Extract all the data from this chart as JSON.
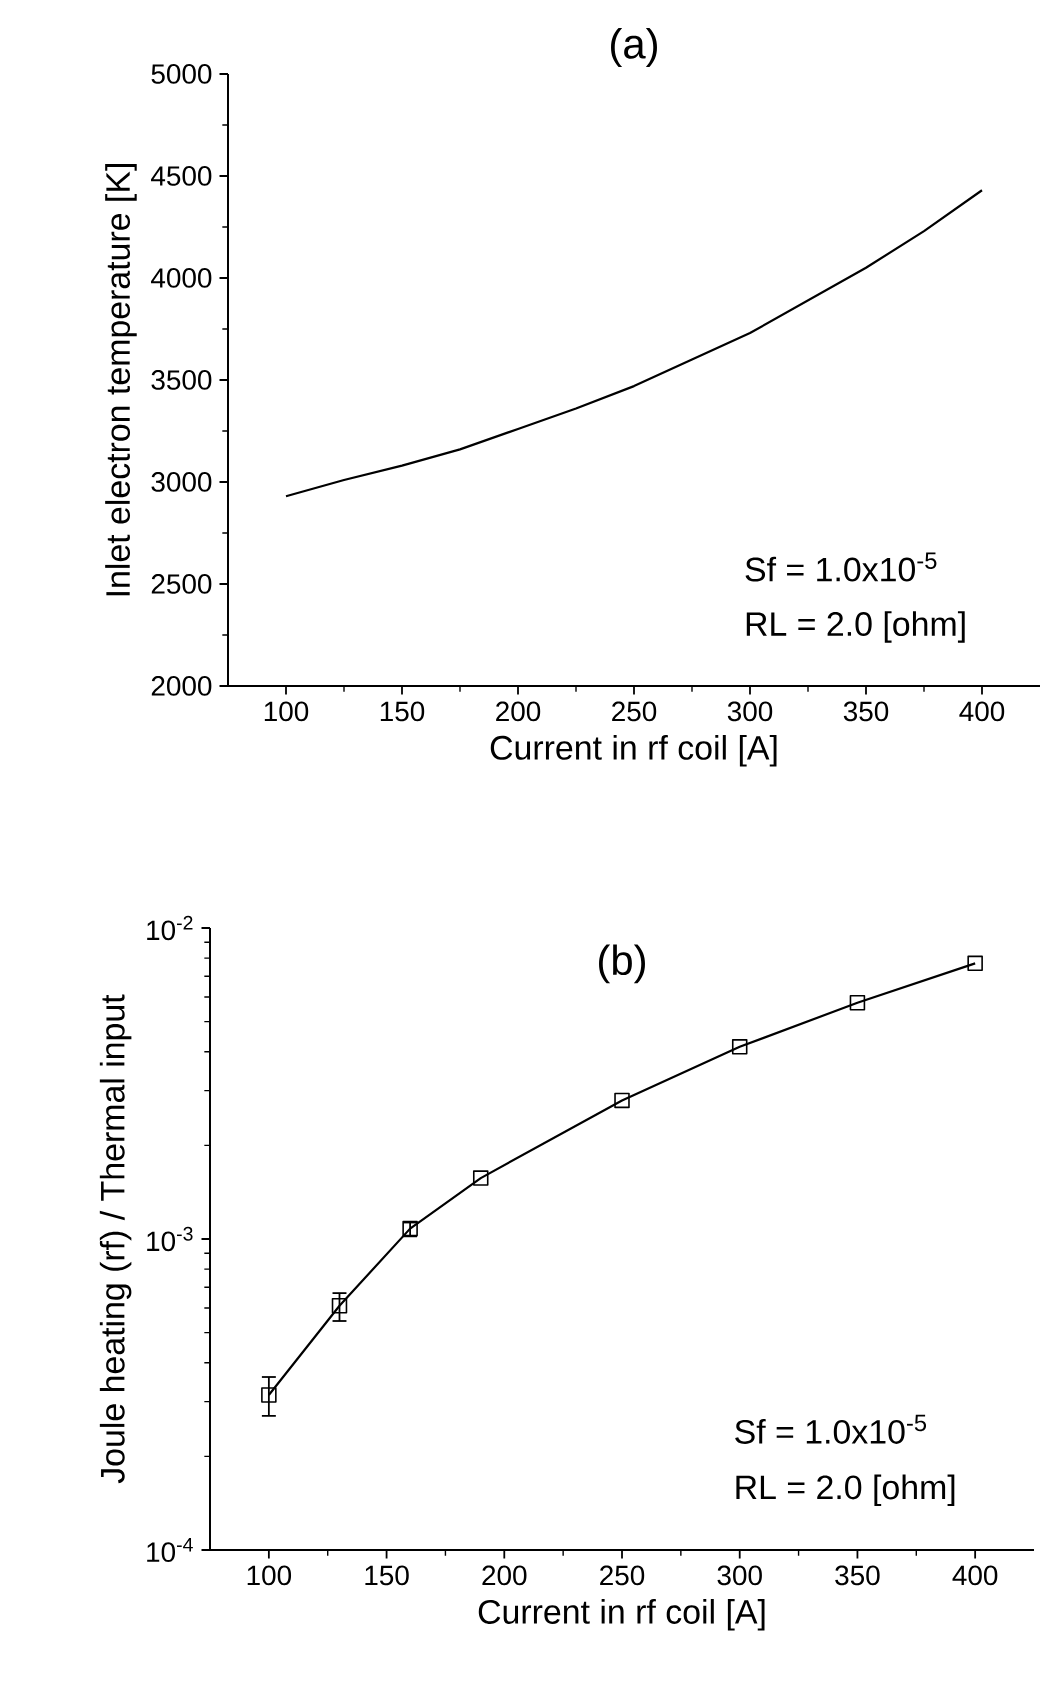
{
  "chart_data": [
    {
      "type": "line",
      "title": "(a)",
      "xlabel": "Current in rf coil [A]",
      "ylabel": "Inlet electron temperature [K]",
      "x": [
        100,
        125,
        150,
        175,
        200,
        225,
        250,
        275,
        300,
        325,
        350,
        375,
        400
      ],
      "series": [
        {
          "color": "#000000",
          "values": [
            2930,
            3010,
            3080,
            3160,
            3260,
            3360,
            3470,
            3600,
            3730,
            3890,
            4050,
            4230,
            4430
          ]
        }
      ],
      "xlim": [
        75,
        425
      ],
      "xticks": [
        100,
        150,
        200,
        250,
        300,
        350,
        400
      ],
      "ylim": [
        2000,
        5000
      ],
      "yticks": [
        2000,
        2500,
        3000,
        3500,
        4000,
        4500,
        5000
      ],
      "annotations": [
        "Sf = 1.0x10$^{-5}$",
        "RL = 2.0 [ohm]"
      ],
      "line_style": "solid"
    },
    {
      "type": "line",
      "title": "(b)",
      "xlabel": "Current in rf coil [A]",
      "ylabel": "Joule heating (rf) / Thermal input",
      "x": [
        100,
        130,
        160,
        190,
        250,
        300,
        350,
        400
      ],
      "series": [
        {
          "color": "#000000",
          "values": [
            0.000315,
            0.00061,
            0.00108,
            0.00157,
            0.00279,
            0.00415,
            0.00575,
            0.0077
          ],
          "errors": [
            [
              0.00027,
              0.00036
            ],
            [
              0.000545,
              0.00067
            ],
            [
              0.00102,
              0.00113
            ],
            null,
            null,
            null,
            null,
            null
          ]
        }
      ],
      "xlim": [
        75,
        425
      ],
      "xticks": [
        100,
        150,
        200,
        250,
        300,
        350,
        400
      ],
      "ylim": [
        0.0001,
        0.01
      ],
      "yticks": [
        {
          "value": 0.0001,
          "label": "10$^{-4}$"
        },
        {
          "value": 0.001,
          "label": "10$^{-3}$"
        },
        {
          "value": 0.01,
          "label": "10$^{-2}$"
        }
      ],
      "log": "y",
      "marker": "square",
      "line_style": "solid",
      "annotations": [
        "Sf = 1.0x10$^{-5}$",
        "RL = 2.0 [ohm]"
      ]
    }
  ]
}
